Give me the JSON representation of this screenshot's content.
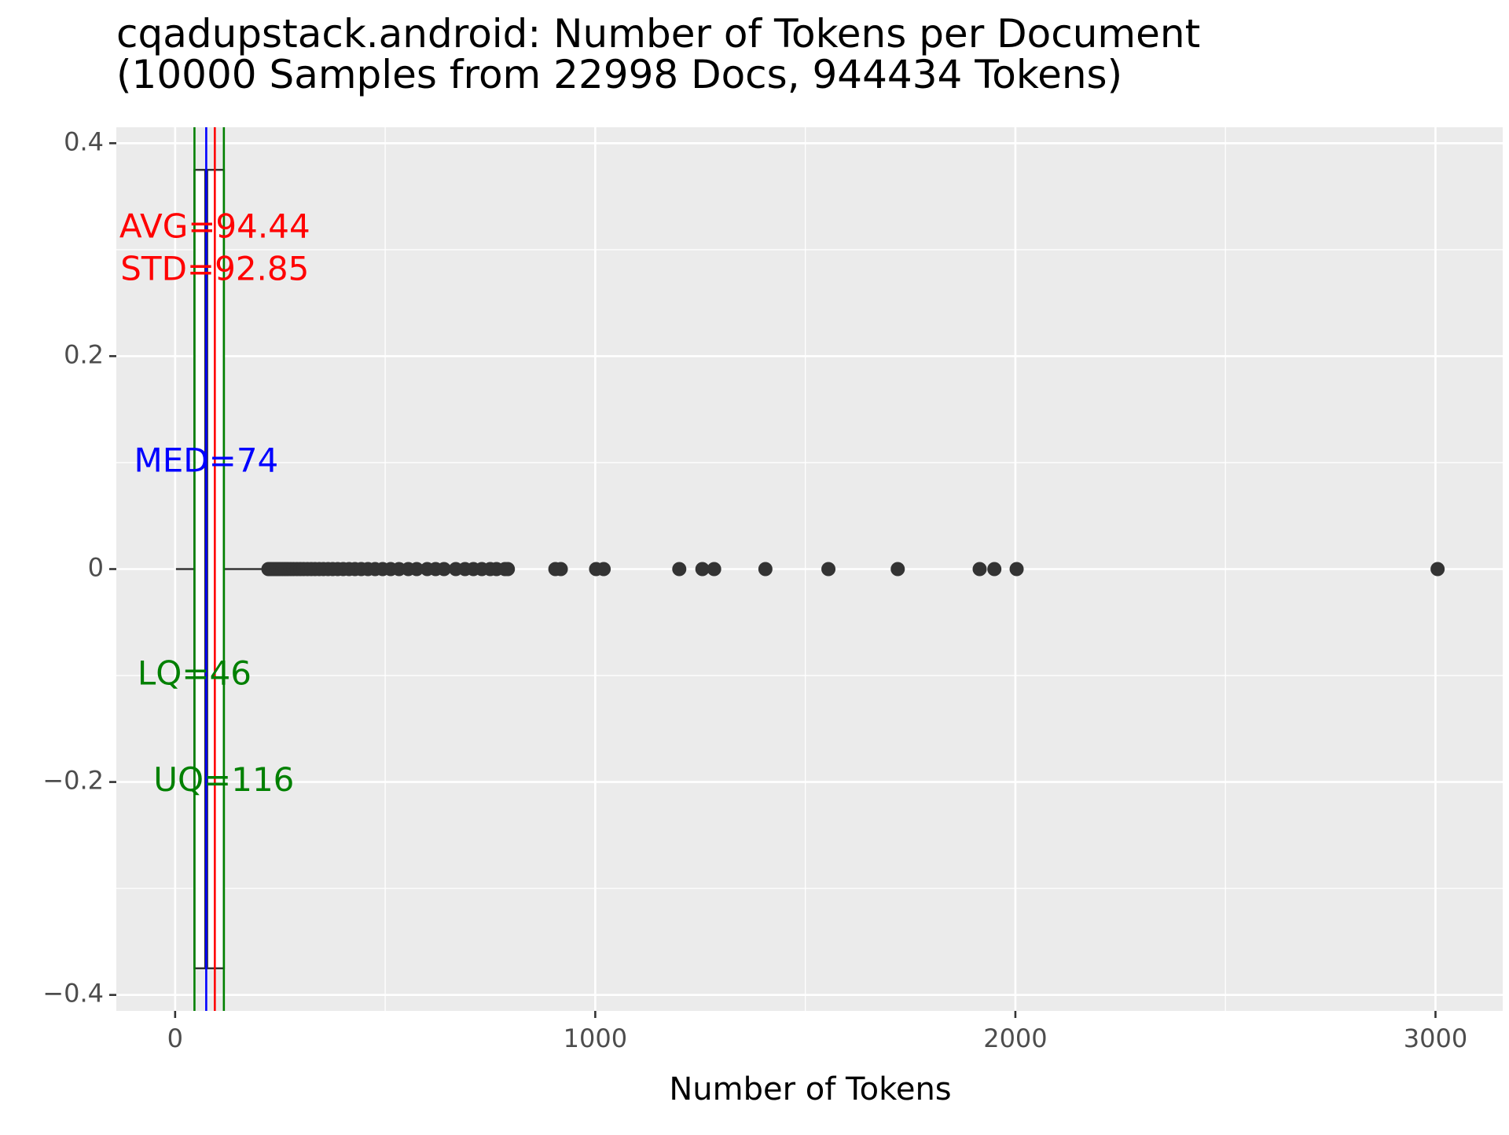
{
  "chart_data": {
    "type": "boxplot",
    "title_line1": "cqadupstack.android: Number of Tokens per Document",
    "title_line2": "(10000 Samples from 22998 Docs, 944434 Tokens)",
    "xlabel": "Number of Tokens",
    "ylabel": "",
    "xlim": [
      -140,
      3160
    ],
    "ylim": [
      -0.415,
      0.415
    ],
    "x_ticks": [
      {
        "value": 0,
        "label": "0"
      },
      {
        "value": 1000,
        "label": "1000"
      },
      {
        "value": 2000,
        "label": "2000"
      },
      {
        "value": 3000,
        "label": "3000"
      }
    ],
    "y_ticks": [
      {
        "value": 0.4,
        "label": "0.4"
      },
      {
        "value": 0.2,
        "label": "0.2"
      },
      {
        "value": 0,
        "label": "0"
      },
      {
        "value": -0.2,
        "label": "−0.2"
      },
      {
        "value": -0.4,
        "label": "−0.4"
      }
    ],
    "grid": true,
    "box": {
      "whisker_low": 2,
      "lower_quartile": 46,
      "median": 74,
      "upper_quartile": 116,
      "whisker_high": 220,
      "half_width": 0.375
    },
    "outliers": [
      222,
      226,
      230,
      235,
      240,
      245,
      250,
      256,
      262,
      268,
      275,
      282,
      290,
      298,
      306,
      315,
      324,
      333,
      343,
      353,
      364,
      375,
      387,
      400,
      414,
      428,
      443,
      459,
      476,
      494,
      513,
      533,
      555,
      575,
      600,
      620,
      640,
      668,
      690,
      710,
      730,
      750,
      765,
      785,
      792,
      905,
      918,
      1002,
      1020,
      1200,
      1255,
      1283,
      1405,
      1555,
      1720,
      1915,
      1950,
      2003,
      3005
    ],
    "reference_lines": [
      {
        "name": "LQ",
        "value": 46,
        "color": "#008000"
      },
      {
        "name": "MED",
        "value": 74,
        "color": "#0000ff"
      },
      {
        "name": "AVG",
        "value": 94.44,
        "color": "#ff0000"
      },
      {
        "name": "UQ",
        "value": 116,
        "color": "#008000"
      }
    ],
    "annotations": [
      {
        "text": "AVG=94.44",
        "x": 94.44,
        "y": 0.32,
        "color": "#ff0000"
      },
      {
        "text": "STD=92.85",
        "x": 94.44,
        "y": 0.28,
        "color": "#ff0000"
      },
      {
        "text": "MED=74",
        "x": 74,
        "y": 0.1,
        "color": "#0000ff"
      },
      {
        "text": "LQ=46",
        "x": 46,
        "y": -0.1,
        "color": "#008000"
      },
      {
        "text": "UQ=116",
        "x": 116,
        "y": -0.2,
        "color": "#008000"
      }
    ],
    "colors": {
      "panel": "#ebebeb",
      "grid_major": "#ffffff",
      "box": "#333333",
      "points": "#333333",
      "tick": "#333333"
    }
  }
}
